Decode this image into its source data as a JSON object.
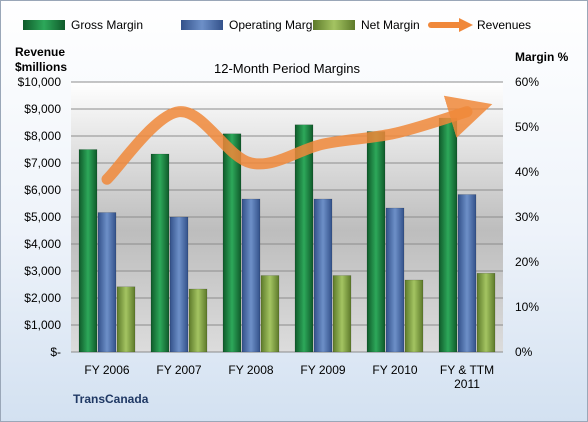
{
  "chart_data": {
    "type": "bar",
    "title": "12-Month Period Margins",
    "company": "TransCanada",
    "categories": [
      [
        "FY 2006"
      ],
      [
        "FY 2007"
      ],
      [
        "FY 2008"
      ],
      [
        "FY 2009"
      ],
      [
        "FY 2010"
      ],
      [
        "FY & TTM",
        "2011"
      ]
    ],
    "left_axis": {
      "label_lines": [
        "Revenue",
        "$millions"
      ],
      "ticks": [
        "$-",
        "$1,000",
        "$2,000",
        "$3,000",
        "$4,000",
        "$5,000",
        "$6,000",
        "$7,000",
        "$8,000",
        "$9,000",
        "$10,000"
      ],
      "range": [
        0,
        10000
      ]
    },
    "right_axis": {
      "label": "Margin %",
      "ticks": [
        "0%",
        "10%",
        "20%",
        "30%",
        "40%",
        "50%",
        "60%"
      ],
      "range": [
        0,
        60
      ]
    },
    "series": [
      {
        "name": "Gross Margin",
        "axis": "right",
        "kind": "bar",
        "color": "#1e8040",
        "values": [
          45,
          44,
          48.5,
          50.5,
          49,
          52
        ]
      },
      {
        "name": "Operating Margin",
        "axis": "right",
        "kind": "bar",
        "color": "#4f74b0",
        "values": [
          31,
          30,
          34,
          34,
          32,
          35
        ]
      },
      {
        "name": "Net Margin",
        "axis": "right",
        "kind": "bar",
        "color": "#7fa040",
        "values": [
          14.5,
          14,
          17,
          17,
          16,
          17.5
        ]
      },
      {
        "name": "Revenues",
        "axis": "left",
        "kind": "line",
        "color": "#f0883a",
        "values": [
          6400,
          8900,
          7000,
          7700,
          8100,
          8900
        ]
      }
    ],
    "grid": true,
    "legend_position": "top"
  }
}
